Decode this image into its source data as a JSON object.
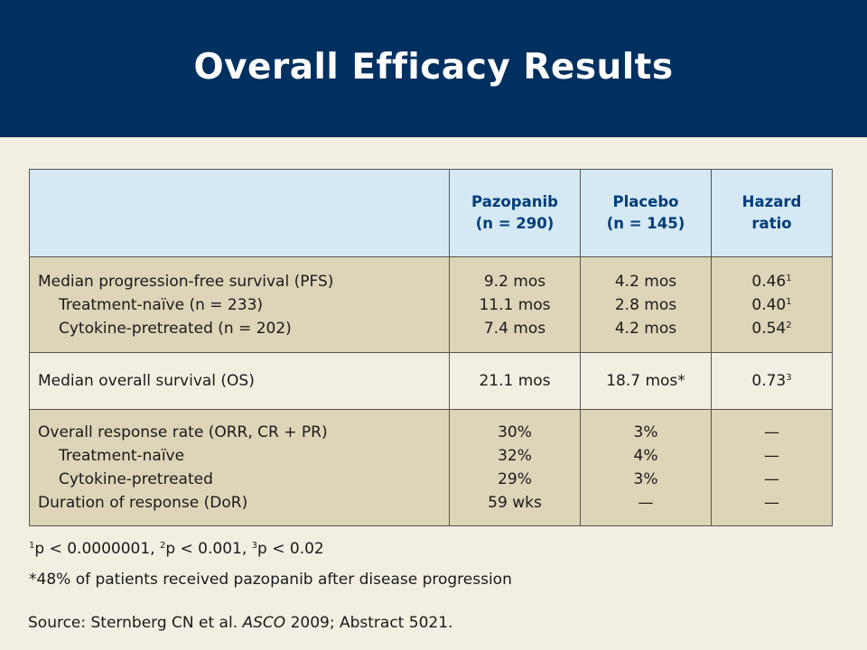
{
  "title": "Overall Efficacy Results",
  "colors": {
    "title_bar": "#003060",
    "header_row": "#d4e9f3",
    "shaded_row": "#ddd5b8",
    "background": "#f2eee1",
    "header_text": "#003d7a"
  },
  "table": {
    "headers": [
      {
        "line1": "",
        "line2": ""
      },
      {
        "line1": "Pazopanib",
        "line2": "(n = 290)"
      },
      {
        "line1": "Placebo",
        "line2": "(n = 145)"
      },
      {
        "line1": "Hazard",
        "line2": "ratio"
      }
    ],
    "rows": [
      {
        "labels": [
          "Median progression-free survival (PFS)",
          "Treatment-naïve (n = 233)",
          "Cytokine-pretreated (n = 202)"
        ],
        "pazopanib": [
          "9.2 mos",
          "11.1 mos",
          "7.4 mos"
        ],
        "placebo": [
          "4.2 mos",
          "2.8 mos",
          "4.2 mos"
        ],
        "hr": [
          {
            "v": "0.46",
            "sup": "1"
          },
          {
            "v": "0.40",
            "sup": "1"
          },
          {
            "v": "0.54",
            "sup": "2"
          }
        ]
      },
      {
        "labels": [
          "Median overall survival (OS)"
        ],
        "pazopanib": [
          "21.1 mos"
        ],
        "placebo": [
          "18.7 mos*"
        ],
        "hr": [
          {
            "v": "0.73",
            "sup": "3"
          }
        ]
      },
      {
        "labels": [
          "Overall response rate (ORR, CR + PR)",
          "Treatment-naïve",
          "Cytokine-pretreated",
          "Duration of response (DoR)"
        ],
        "pazopanib": [
          "30%",
          "32%",
          "29%",
          "59 wks"
        ],
        "placebo": [
          "3%",
          "4%",
          "3%",
          "—"
        ],
        "hr": [
          {
            "v": "—",
            "sup": ""
          },
          {
            "v": "—",
            "sup": ""
          },
          {
            "v": "—",
            "sup": ""
          },
          {
            "v": "—",
            "sup": ""
          }
        ]
      }
    ]
  },
  "footnote1": {
    "s1": "1",
    "t1": "p < 0.0000001, ",
    "s2": "2",
    "t2": "p < 0.001, ",
    "s3": "3",
    "t3": "p < 0.02"
  },
  "footnote2": "*48% of patients received pazopanib after disease progression",
  "source": {
    "prefix": "Source: Sternberg CN et al. ",
    "journal": "ASCO",
    "suffix": " 2009; Abstract 5021."
  }
}
